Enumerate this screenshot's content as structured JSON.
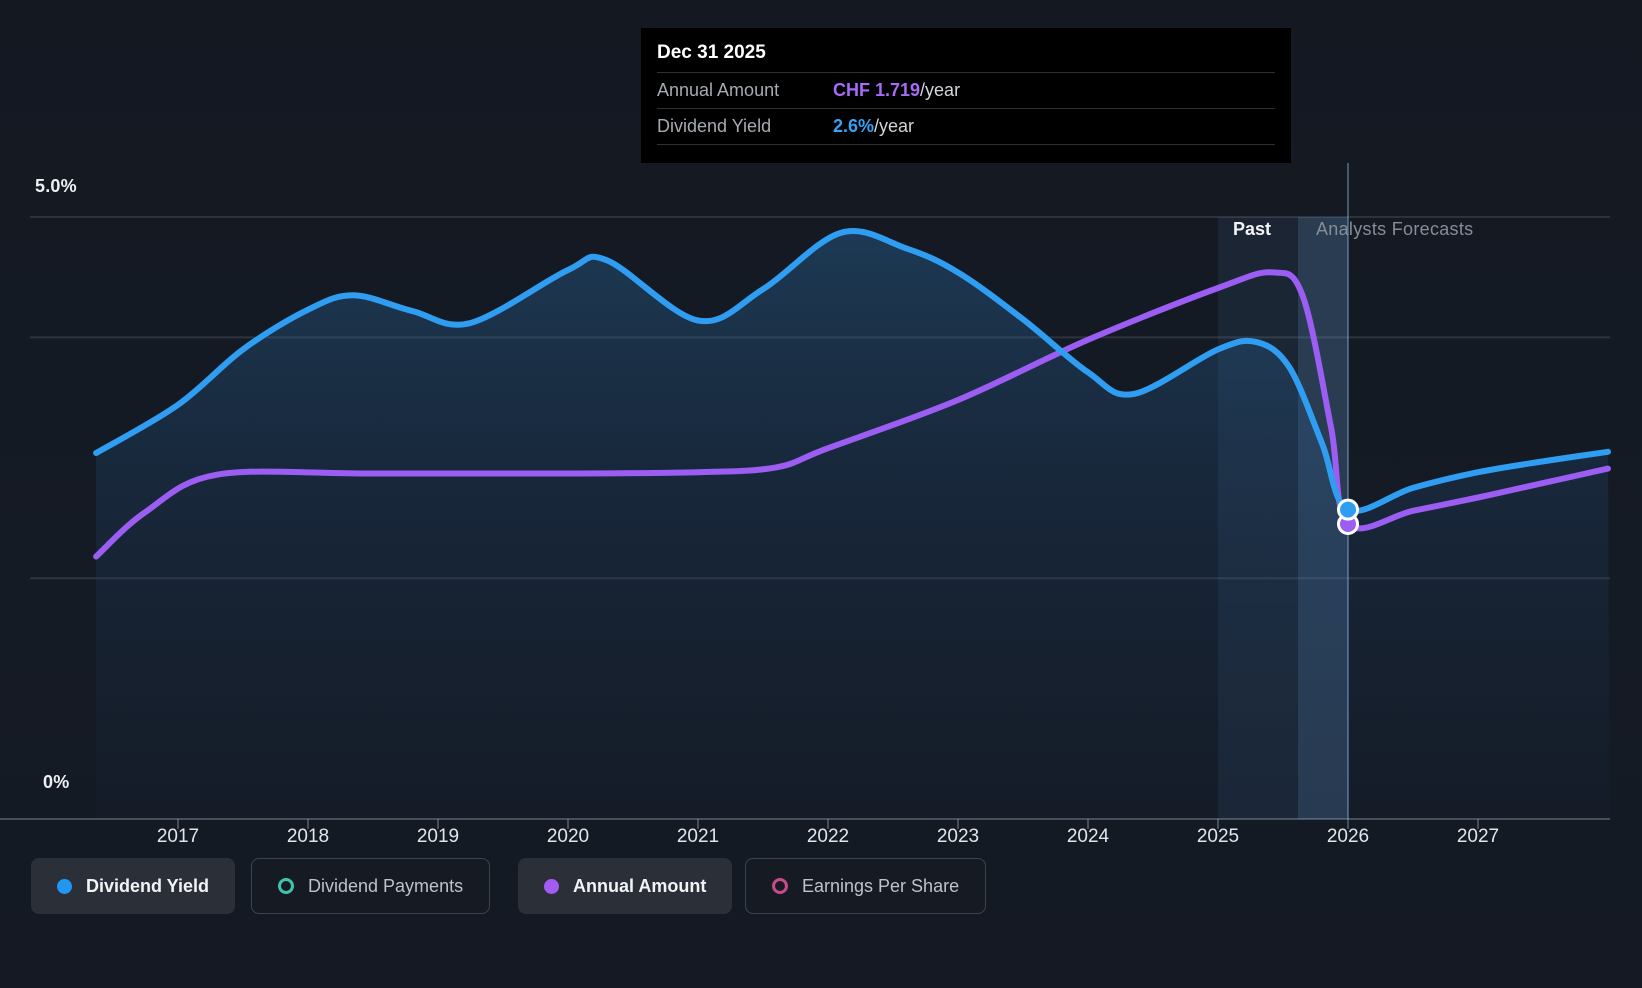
{
  "tooltip": {
    "date": "Dec 31 2025",
    "rows": [
      {
        "label": "Annual Amount",
        "value": "CHF 1.719",
        "suffix": "/year",
        "color": "#a66bf7"
      },
      {
        "label": "Dividend Yield",
        "value": "2.6%",
        "suffix": "/year",
        "color": "#35a3f7"
      }
    ]
  },
  "axis": {
    "y_top_label": "5.0%",
    "y_bottom_label": "0%",
    "x_labels": [
      "2017",
      "2018",
      "2019",
      "2020",
      "2021",
      "2022",
      "2023",
      "2024",
      "2025",
      "2026",
      "2027"
    ]
  },
  "annotations": {
    "past": "Past",
    "forecast": "Analysts Forecasts"
  },
  "legend": [
    {
      "label": "Dividend Yield",
      "state": "active",
      "marker": "filled",
      "color": "#2196f3"
    },
    {
      "label": "Dividend Payments",
      "state": "inactive",
      "marker": "ring",
      "color": "#3fc3ae"
    },
    {
      "label": "Annual Amount",
      "state": "active",
      "marker": "filled",
      "color": "#a35bf2"
    },
    {
      "label": "Earnings Per Share",
      "state": "inactive",
      "marker": "ring",
      "color": "#c9498d"
    }
  ],
  "colors": {
    "yield_line": "#2f9ef2",
    "annual_amount_line": "#9b5df2",
    "gridline": "rgba(200,215,230,0.14)",
    "axis_line": "rgba(200,215,230,0.28)",
    "band": "rgba(95,150,205,0.10)",
    "band_bright": "rgba(125,180,235,0.16)",
    "crosshair": "rgba(140,190,240,0.40)",
    "background": "#141a23"
  },
  "chart_data": {
    "type": "area",
    "title": "Dividend yield history and analysts forecast",
    "x_range": [
      2016.37,
      2028.0
    ],
    "y_axis": {
      "min": 0,
      "max": 5,
      "unit": "%",
      "gridlines_pct": [
        5,
        4,
        2
      ],
      "top_tick_label": "5.0%",
      "bottom_tick_label": "0%"
    },
    "x_tick_years": [
      2017,
      2018,
      2019,
      2020,
      2021,
      2022,
      2023,
      2024,
      2025,
      2026,
      2027
    ],
    "past_until": 2026.0,
    "highlight_band_years": [
      2025.0,
      2026.0
    ],
    "crosshair_year": 2026.0,
    "tooltip_point": {
      "date": "Dec 31 2025",
      "annual_amount": "CHF 1.719/year",
      "dividend_yield": "2.6%/year"
    },
    "legend_position": "bottom",
    "series": [
      {
        "name": "Dividend Yield",
        "unit": "%",
        "color": "#2f9ef2",
        "marker_point": [
          2026.0,
          2.57
        ],
        "points": [
          [
            2016.37,
            3.04
          ],
          [
            2017.0,
            3.44
          ],
          [
            2017.5,
            3.9
          ],
          [
            2018.0,
            4.23
          ],
          [
            2018.35,
            4.35
          ],
          [
            2018.8,
            4.22
          ],
          [
            2019.25,
            4.12
          ],
          [
            2020.0,
            4.56
          ],
          [
            2020.3,
            4.64
          ],
          [
            2021.0,
            4.14
          ],
          [
            2021.5,
            4.4
          ],
          [
            2022.1,
            4.87
          ],
          [
            2022.6,
            4.74
          ],
          [
            2023.0,
            4.54
          ],
          [
            2023.5,
            4.15
          ],
          [
            2024.0,
            3.71
          ],
          [
            2024.35,
            3.53
          ],
          [
            2025.0,
            3.9
          ],
          [
            2025.3,
            3.96
          ],
          [
            2025.55,
            3.75
          ],
          [
            2025.8,
            3.12
          ],
          [
            2026.0,
            2.57
          ],
          [
            2026.5,
            2.75
          ],
          [
            2027.0,
            2.88
          ],
          [
            2027.5,
            2.97
          ],
          [
            2028.0,
            3.05
          ]
        ]
      },
      {
        "name": "Annual Amount",
        "unit": "chart-relative (own CHF scale; known value CHF 1.719/year at Dec 31 2025)",
        "color": "#9b5df2",
        "marker_point": [
          2026.0,
          2.45
        ],
        "points": [
          [
            2016.37,
            2.18
          ],
          [
            2016.75,
            2.55
          ],
          [
            2017.3,
            2.86
          ],
          [
            2018.5,
            2.87
          ],
          [
            2020.0,
            2.87
          ],
          [
            2021.0,
            2.88
          ],
          [
            2021.6,
            2.92
          ],
          [
            2022.0,
            3.08
          ],
          [
            2023.0,
            3.48
          ],
          [
            2024.0,
            3.98
          ],
          [
            2025.0,
            4.41
          ],
          [
            2025.42,
            4.54
          ],
          [
            2025.65,
            4.35
          ],
          [
            2025.87,
            3.25
          ],
          [
            2026.0,
            2.45
          ],
          [
            2026.5,
            2.56
          ],
          [
            2027.0,
            2.67
          ],
          [
            2027.5,
            2.79
          ],
          [
            2028.0,
            2.91
          ]
        ]
      }
    ]
  }
}
